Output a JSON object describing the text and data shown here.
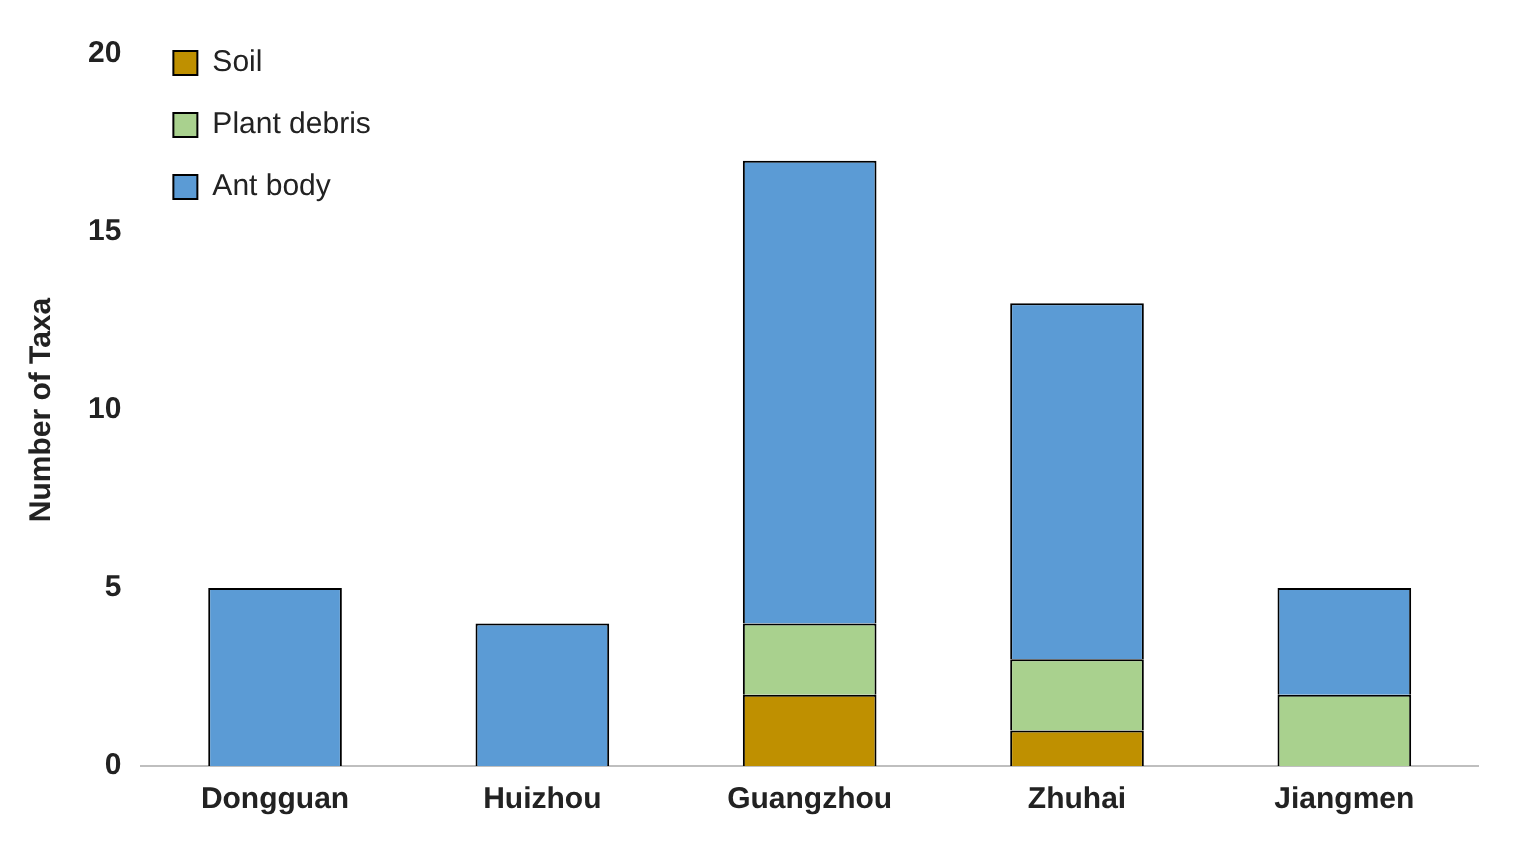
{
  "chart_data": {
    "type": "bar",
    "ylabel": "Number of Taxa",
    "categories": [
      "Dongguan",
      "Huizhou",
      "Guangzhou",
      "Zhuhai",
      "Jiangmen"
    ],
    "series": [
      {
        "name": "Soil",
        "color": "#bf9000",
        "values": [
          0,
          0,
          2,
          1,
          0
        ]
      },
      {
        "name": "Plant debris",
        "color": "#a9d18e",
        "values": [
          0,
          0,
          2,
          2,
          2
        ]
      },
      {
        "name": "Ant body",
        "color": "#5b9bd5",
        "values": [
          5,
          4,
          13,
          10,
          3
        ]
      }
    ],
    "stacked": true,
    "ylim": [
      0,
      20
    ],
    "yticks": [
      0,
      5,
      10,
      15,
      20
    ],
    "grid": false,
    "legend": "top left"
  }
}
